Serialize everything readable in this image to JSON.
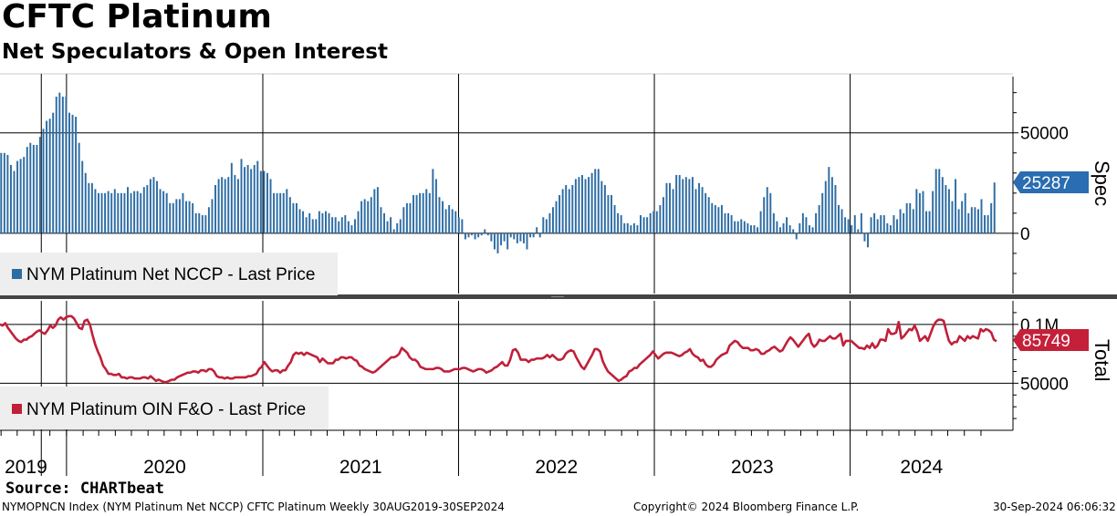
{
  "header": {
    "title": "CFTC Platinum",
    "subtitle": "Net Speculators & Open Interest"
  },
  "footer": {
    "source": "Source: CHARTbeat",
    "index_info": "NYMOPNCN Index (NYM Platinum Net NCCP) CFTC Platinum  Weekly 30AUG2019-30SEP2024",
    "copyright": "Copyright© 2024 Bloomberg Finance L.P.",
    "timestamp": "30-Sep-2024 06:06:32"
  },
  "colors": {
    "spec_bar": "#2e6da4",
    "oi_line": "#c0203a",
    "spec_tag": "#2a6db0",
    "oi_tag": "#c4203a",
    "legend_bg": "#eeeeee",
    "divider": "#444444"
  },
  "chart_data": [
    {
      "type": "bar",
      "panel": "top",
      "axis_title": "Spec",
      "legend": "NYM Platinum Net NCCP - Last Price",
      "last_value_label": "25287",
      "last_value": 25287,
      "y_ticks": [
        {
          "value": 50000,
          "label": "50000"
        },
        {
          "value": 0,
          "label": "0"
        }
      ],
      "ylim": [
        -30000,
        78000
      ],
      "x_start": "2019-08-30",
      "x_end": "2024-09-30",
      "frequency": "weekly",
      "series": [
        {
          "name": "NYM Platinum Net NCCP",
          "values": [
            40000,
            40000,
            39000,
            34000,
            31000,
            36000,
            37000,
            38000,
            43000,
            45000,
            44000,
            44000,
            48000,
            52000,
            56000,
            57000,
            60000,
            68000,
            70000,
            68000,
            68000,
            60000,
            59000,
            58000,
            45000,
            36000,
            30000,
            25000,
            25000,
            22000,
            20000,
            20000,
            20000,
            21000,
            20000,
            22000,
            20000,
            20000,
            20000,
            23000,
            20000,
            21000,
            21000,
            20000,
            23000,
            24000,
            27000,
            28000,
            26000,
            22000,
            21000,
            20000,
            15000,
            15000,
            17000,
            17000,
            20000,
            16000,
            16000,
            15000,
            10000,
            10000,
            9000,
            9000,
            13000,
            17000,
            24000,
            27000,
            28000,
            27000,
            28000,
            35000,
            29000,
            27000,
            37000,
            33000,
            34000,
            32000,
            34000,
            36000,
            31000,
            31000,
            30000,
            27000,
            20000,
            20000,
            20000,
            20000,
            22000,
            18000,
            15000,
            15000,
            12000,
            11000,
            8000,
            10000,
            7000,
            7000,
            11000,
            10000,
            11000,
            10000,
            8000,
            8000,
            6000,
            8000,
            9000,
            6000,
            4000,
            7000,
            11000,
            16000,
            17000,
            16000,
            18000,
            22000,
            23000,
            13000,
            10000,
            6000,
            8000,
            2000,
            5000,
            7000,
            13000,
            15000,
            15000,
            19000,
            19000,
            20000,
            20000,
            22000,
            20000,
            32000,
            27000,
            18000,
            16000,
            12000,
            14000,
            12000,
            11000,
            8000,
            7000,
            -3000,
            -2000,
            -1000,
            -3000,
            -2000,
            -1000,
            2000,
            -1000,
            -4000,
            -8000,
            -10000,
            -6000,
            -4000,
            -8000,
            -2000,
            -3000,
            -5000,
            -4000,
            -5000,
            -8000,
            -2000,
            -2000,
            3000,
            -2000,
            8000,
            7000,
            10000,
            13000,
            16000,
            19000,
            22000,
            24000,
            22000,
            24000,
            27000,
            28000,
            29000,
            27000,
            28000,
            30000,
            32000,
            32000,
            26000,
            24000,
            19000,
            19000,
            14000,
            10000,
            9000,
            5000,
            5000,
            4000,
            5000,
            4000,
            9000,
            8000,
            8000,
            10000,
            11000,
            11000,
            14000,
            18000,
            25000,
            25000,
            22000,
            29000,
            29000,
            27000,
            28000,
            27000,
            28000,
            22000,
            25000,
            23000,
            20000,
            18000,
            15000,
            14000,
            13000,
            14000,
            10000,
            10000,
            9000,
            6000,
            6000,
            7000,
            6000,
            5000,
            4000,
            4000,
            3000,
            11000,
            18000,
            23000,
            20000,
            10000,
            6000,
            3000,
            5000,
            8000,
            4000,
            2000,
            -3000,
            5000,
            10000,
            8000,
            4000,
            3000,
            10000,
            14000,
            20000,
            26000,
            33000,
            28000,
            24000,
            14000,
            12000,
            8000,
            7000,
            4000,
            9000,
            2000,
            10000,
            -4000,
            -7000,
            8000,
            10000,
            7000,
            9000,
            9000,
            5000,
            4000,
            9000,
            7000,
            12000,
            10000,
            15000,
            15000,
            12000,
            22000,
            20000,
            21000,
            11000,
            11000,
            21000,
            32000,
            32000,
            28000,
            24000,
            22000,
            16000,
            27000,
            12000,
            16000,
            20000,
            10000,
            13000,
            13000,
            12000,
            17000,
            9000,
            9000,
            15000,
            25287
          ]
        }
      ]
    },
    {
      "type": "line",
      "panel": "bottom",
      "axis_title": "Total",
      "legend": "NYM Platinum OIN F&O - Last Price",
      "last_value_label": "85749",
      "last_value": 85749,
      "y_ticks": [
        {
          "value": 100000,
          "label": "0.1M"
        },
        {
          "value": 50000,
          "label": "50000"
        }
      ],
      "ylim": [
        10000,
        120000
      ],
      "x_start": "2019-08-30",
      "x_end": "2024-09-30",
      "frequency": "weekly",
      "series": [
        {
          "name": "NYM Platinum OIN F&O",
          "values": [
            100000,
            99000,
            101000,
            97000,
            94000,
            91000,
            88000,
            86000,
            85000,
            87000,
            87000,
            89000,
            90000,
            92000,
            94000,
            95000,
            93000,
            92000,
            95000,
            99000,
            97000,
            99000,
            104000,
            106000,
            104000,
            106000,
            107000,
            107000,
            105000,
            101000,
            97000,
            96000,
            103000,
            104000,
            100000,
            91000,
            83000,
            77000,
            72000,
            65000,
            62000,
            58000,
            58000,
            57000,
            57000,
            58000,
            55000,
            55000,
            54000,
            55000,
            55000,
            54000,
            54000,
            54000,
            55000,
            55000,
            54000,
            56000,
            54000,
            52000,
            53000,
            52000,
            51000,
            51000,
            52000,
            53000,
            53000,
            55000,
            56000,
            57000,
            58000,
            59000,
            59000,
            60000,
            60000,
            59000,
            61000,
            61000,
            60000,
            62000,
            62000,
            60000,
            56000,
            55000,
            55000,
            54000,
            55000,
            54000,
            54000,
            55000,
            55000,
            55000,
            55000,
            55000,
            56000,
            56000,
            57000,
            58000,
            62000,
            64000,
            68000,
            65000,
            62000,
            60000,
            61000,
            61000,
            59000,
            61000,
            61000,
            65000,
            68000,
            74000,
            76000,
            75000,
            76000,
            74000,
            76000,
            75000,
            74000,
            73000,
            72000,
            68000,
            71000,
            69000,
            67000,
            67000,
            67000,
            70000,
            70000,
            72000,
            72000,
            71000,
            72000,
            72000,
            70000,
            69000,
            65000,
            64000,
            62000,
            61000,
            60000,
            59000,
            60000,
            62000,
            64000,
            66000,
            68000,
            70000,
            72000,
            72000,
            73000,
            75000,
            80000,
            78000,
            76000,
            72000,
            70000,
            70000,
            68000,
            64000,
            63000,
            62000,
            62000,
            62000,
            62000,
            63000,
            63000,
            62000,
            60000,
            60000,
            60000,
            61000,
            62000,
            62000,
            62000,
            63000,
            63000,
            62000,
            61000,
            60000,
            61000,
            62000,
            62000,
            61000,
            59000,
            60000,
            61000,
            63000,
            64000,
            66000,
            68000,
            65000,
            65000,
            70000,
            78000,
            79000,
            76000,
            70000,
            70000,
            70000,
            68000,
            70000,
            70000,
            71000,
            71000,
            71000,
            72000,
            74000,
            72000,
            74000,
            72000,
            70000,
            70000,
            71000,
            75000,
            77000,
            78000,
            77000,
            72000,
            68000,
            64000,
            62000,
            66000,
            70000,
            74000,
            79000,
            79000,
            77000,
            69000,
            64000,
            60000,
            58000,
            56000,
            54000,
            52000,
            53000,
            55000,
            56000,
            60000,
            61000,
            63000,
            63000,
            66000,
            68000,
            70000,
            72000,
            74000,
            77000,
            74000,
            71000,
            73000,
            75000,
            76000,
            76000,
            76000,
            75000,
            74000,
            73000,
            74000,
            76000,
            77000,
            79000,
            75000,
            73000,
            72000,
            69000,
            70000,
            66000,
            64000,
            64000,
            66000,
            70000,
            72000,
            74000,
            75000,
            76000,
            82000,
            84000,
            86000,
            85000,
            82000,
            80000,
            80000,
            80000,
            78000,
            78000,
            79000,
            78000,
            75000,
            75000,
            77000,
            78000,
            80000,
            81000,
            79000,
            77000,
            78000,
            82000,
            86000,
            89000,
            87000,
            84000,
            81000,
            84000,
            87000,
            90000,
            92000,
            84000,
            81000,
            83000,
            87000,
            86000,
            86000,
            88000,
            90000,
            88000,
            88000,
            90000,
            92000,
            82000,
            86000,
            86000,
            86000,
            84000,
            82000,
            80000,
            80000,
            79000,
            82000,
            80000,
            84000,
            80000,
            82000,
            87000,
            87000,
            86000,
            96000,
            92000,
            92000,
            93000,
            102000,
            88000,
            90000,
            93000,
            96000,
            95000,
            99000,
            94000,
            86000,
            88000,
            90000,
            86000,
            92000,
            98000,
            102000,
            104000,
            104000,
            103000,
            94000,
            86000,
            83000,
            85000,
            85000,
            90000,
            88000,
            86000,
            90000,
            88000,
            90000,
            89000,
            88000,
            96000,
            94000,
            96000,
            95000,
            93000,
            87000,
            85749
          ]
        }
      ]
    }
  ],
  "x_axis": {
    "years": [
      "2019",
      "2020",
      "2021",
      "2022",
      "2023",
      "2024"
    ]
  }
}
